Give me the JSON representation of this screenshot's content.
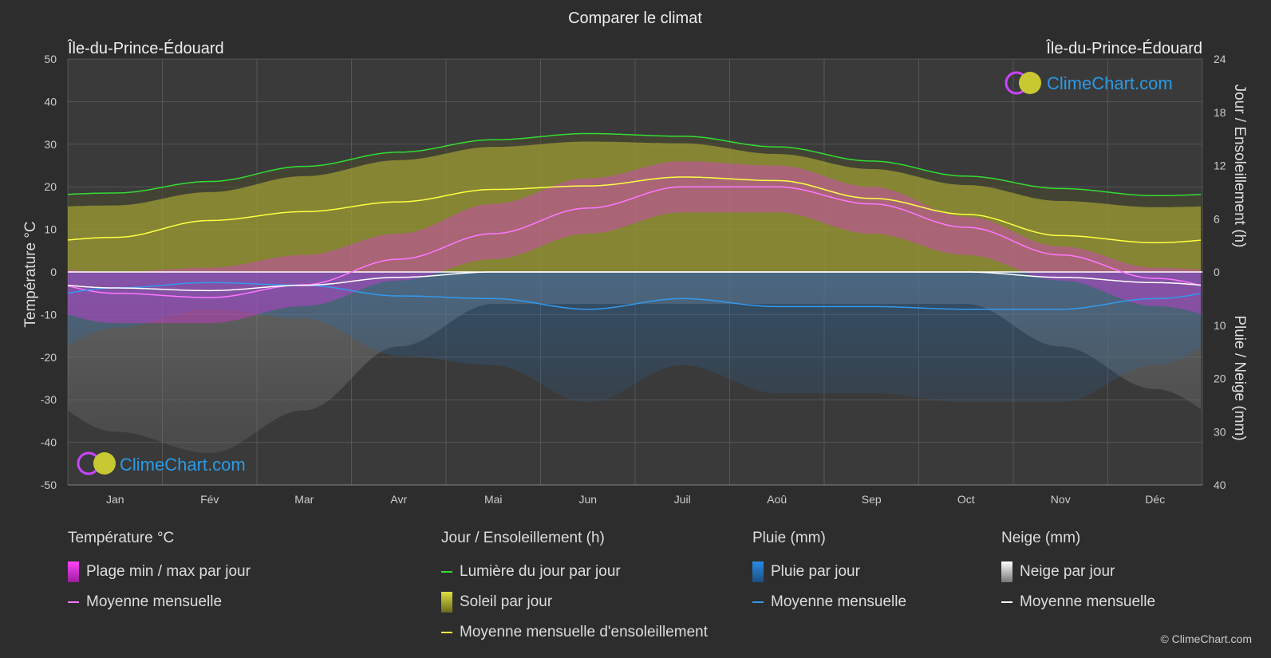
{
  "title": "Comparer le climat",
  "location_left": "Île-du-Prince-Édouard",
  "location_right": "Île-du-Prince-Édouard",
  "brand": "ClimeChart.com",
  "copyright": "© ClimeChart.com",
  "colors": {
    "background": "#2d2d2d",
    "temp_range": "#e632e6",
    "temp_mean": "#ff77ff",
    "daylight": "#33dd33",
    "sunshine_fill": "#c8c832",
    "sunshine_mean": "#ffff44",
    "rain": "#2a8ae6",
    "rain_mean": "#3399ee",
    "snow": "#bbbbbb",
    "snow_mean": "#ffffff",
    "brand_text": "#2a9ae6"
  },
  "chart_data": {
    "type": "area",
    "x_categories": [
      "Jan",
      "Fév",
      "Mar",
      "Avr",
      "Mai",
      "Jun",
      "Juil",
      "Aoû",
      "Sep",
      "Oct",
      "Nov",
      "Déc"
    ],
    "y_left": {
      "label": "Température °C",
      "range": [
        -50,
        50
      ],
      "ticks": [
        50,
        40,
        30,
        20,
        10,
        0,
        -10,
        -20,
        -30,
        -40,
        -50
      ]
    },
    "y_right_top": {
      "label": "Jour / Ensoleillement (h)",
      "range": [
        0,
        24
      ],
      "ticks": [
        24,
        18,
        12,
        6,
        0
      ]
    },
    "y_right_bottom": {
      "label": "Pluie / Neige (mm)",
      "range": [
        0,
        40
      ],
      "ticks": [
        10,
        20,
        30,
        40
      ]
    },
    "grid": true,
    "series": [
      {
        "name": "Lumière du jour par jour",
        "unit": "h",
        "values": [
          8.9,
          10.2,
          11.9,
          13.5,
          14.9,
          15.6,
          15.3,
          14.1,
          12.5,
          10.8,
          9.4,
          8.6
        ]
      },
      {
        "name": "Moyenne mensuelle d'ensoleillement",
        "unit": "h",
        "values": [
          3.9,
          5.8,
          6.8,
          7.9,
          9.3,
          9.7,
          10.7,
          10.3,
          8.3,
          6.5,
          4.1,
          3.3
        ]
      },
      {
        "name": "Moyenne mensuelle",
        "group": "Température °C",
        "unit": "°C",
        "values": [
          -5.0,
          -6.0,
          -3.0,
          3.0,
          9.0,
          15.0,
          20.0,
          20.0,
          16.0,
          10.5,
          4.0,
          -1.5
        ]
      },
      {
        "name": "Moyenne mensuelle",
        "group": "Pluie (mm)",
        "unit": "mm",
        "values": [
          3.0,
          2.0,
          2.5,
          4.5,
          5.0,
          7.0,
          5.0,
          6.5,
          6.5,
          7.0,
          7.0,
          5.0
        ]
      },
      {
        "name": "Moyenne mensuelle",
        "group": "Neige (mm)",
        "unit": "mm",
        "values": [
          3.0,
          3.5,
          2.5,
          1.0,
          0.0,
          0.0,
          0.0,
          0.0,
          0.0,
          0.0,
          1.0,
          2.0
        ]
      }
    ],
    "temp_range_daily_band": {
      "max": [
        0,
        1,
        4,
        9,
        16,
        22,
        26,
        25,
        20,
        13,
        6,
        1
      ],
      "min": [
        -12,
        -12,
        -8,
        -2,
        3,
        9,
        14,
        14,
        9,
        4,
        -2,
        -8
      ]
    },
    "sunshine_daily_band_top": [
      7.5,
      9.0,
      10.8,
      12.6,
      14.1,
      14.7,
      14.5,
      13.3,
      11.6,
      9.8,
      8.0,
      7.3
    ]
  },
  "legend": {
    "temperature": {
      "header": "Température °C",
      "range_label": "Plage min / max par jour",
      "mean_label": "Moyenne mensuelle"
    },
    "sun": {
      "header": "Jour / Ensoleillement (h)",
      "daylight_label": "Lumière du jour par jour",
      "sunshine_label": "Soleil par jour",
      "sunshine_mean_label": "Moyenne mensuelle d'ensoleillement"
    },
    "rain": {
      "header": "Pluie (mm)",
      "rain_label": "Pluie par jour",
      "mean_label": "Moyenne mensuelle"
    },
    "snow": {
      "header": "Neige (mm)",
      "snow_label": "Neige par jour",
      "mean_label": "Moyenne mensuelle"
    }
  }
}
